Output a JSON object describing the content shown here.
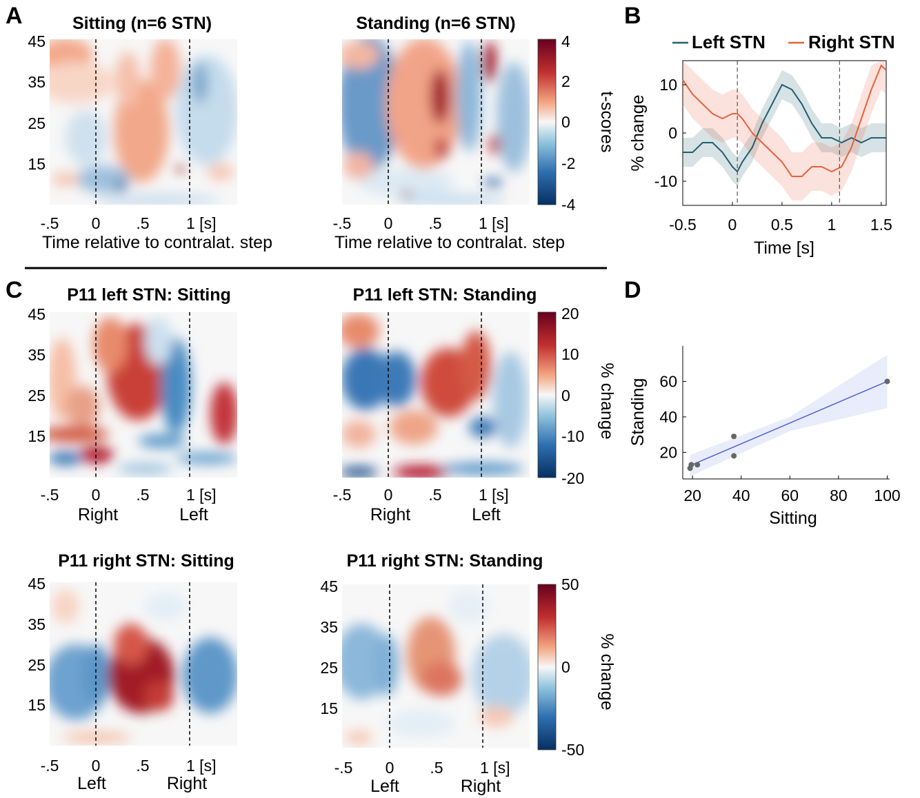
{
  "panels": {
    "a": "A",
    "b": "B",
    "c": "C",
    "d": "D"
  },
  "colormap": {
    "neg": "#1c4f8f",
    "mid": "#f7f7f7",
    "pos": "#a60a23"
  },
  "heatmaps": [
    {
      "id": "A1",
      "title": "Sitting (n=6 STN)",
      "xticks": [
        "-.5",
        "0",
        ".5",
        "1 [s]"
      ],
      "yticks": [
        "45",
        "35",
        "25",
        "15"
      ],
      "xlabel": "Time relative to contralat. step",
      "sublabels": [],
      "vmax": 4
    },
    {
      "id": "A2",
      "title": "Standing (n=6 STN)",
      "xticks": [
        "-.5",
        "0",
        ".5",
        "1 [s]"
      ],
      "yticks": [],
      "xlabel": "Time relative to contralat. step",
      "sublabels": [],
      "vmax": 4
    },
    {
      "id": "C1",
      "title": "P11 left STN: Sitting",
      "xticks": [
        "-.5",
        "0",
        ".5",
        "1 [s]"
      ],
      "yticks": [
        "45",
        "35",
        "25",
        "15"
      ],
      "xlabel": "",
      "sublabels": [
        "Right",
        "Left"
      ],
      "vmax": 20
    },
    {
      "id": "C2",
      "title": "P11 left STN: Standing",
      "xticks": [
        "-.5",
        "0",
        ".5",
        "1 [s]"
      ],
      "yticks": [],
      "xlabel": "",
      "sublabels": [
        "Right",
        "Left"
      ],
      "vmax": 20
    },
    {
      "id": "C3",
      "title": "P11 right STN: Sitting",
      "xticks": [
        "-.5",
        "0",
        ".5",
        "1 [s]"
      ],
      "yticks": [
        "45",
        "35",
        "25",
        "15"
      ],
      "xlabel": "",
      "sublabels": [
        "Left",
        "Right"
      ],
      "vmax": 50
    },
    {
      "id": "C4",
      "title": "P11 right STN: Standing",
      "xticks": [
        "-.5",
        "0",
        ".5",
        "1 [s]"
      ],
      "yticks": [
        "45",
        "35",
        "25",
        "15"
      ],
      "xlabel": "",
      "sublabels": [
        "Left",
        "Right"
      ],
      "vmax": 50
    }
  ],
  "colorbars": [
    {
      "id": "cb1",
      "ticks": [
        "4",
        "2",
        "0",
        "-2",
        "-4"
      ],
      "label": "t-scores"
    },
    {
      "id": "cb2",
      "ticks": [
        "20",
        "10",
        "0",
        "-10",
        "-20"
      ],
      "label": "% change"
    },
    {
      "id": "cb3",
      "ticks": [
        "50",
        "0",
        "-50"
      ],
      "label": "% change"
    }
  ],
  "chart_data": [
    {
      "type": "line",
      "panel": "B",
      "xlabel": "Time [s]",
      "ylabel": "% change",
      "xlim": [
        -0.5,
        1.55
      ],
      "ylim": [
        -15,
        15
      ],
      "xticks": [
        "-0.5",
        "0",
        "0.5",
        "1",
        "1.5"
      ],
      "yticks": [
        "10",
        "0",
        "-10"
      ],
      "legend_position": "top",
      "vlines": [
        0.05,
        1.08
      ],
      "series": [
        {
          "name": "Left STN",
          "color": "#1f5f6f",
          "x": [
            -0.5,
            -0.4,
            -0.3,
            -0.2,
            -0.1,
            0.0,
            0.05,
            0.1,
            0.2,
            0.3,
            0.4,
            0.5,
            0.6,
            0.7,
            0.8,
            0.9,
            1.0,
            1.1,
            1.2,
            1.3,
            1.4,
            1.5,
            1.55
          ],
          "y": [
            -4,
            -4,
            -2,
            -2,
            -4,
            -7,
            -8,
            -6,
            -3,
            2,
            6,
            10,
            9,
            6,
            2,
            -1,
            -1,
            -2,
            -1,
            -2,
            -1,
            -1,
            -1
          ]
        },
        {
          "name": "Right STN",
          "color": "#e8603c",
          "x": [
            -0.5,
            -0.4,
            -0.3,
            -0.2,
            -0.1,
            0.0,
            0.05,
            0.1,
            0.2,
            0.3,
            0.4,
            0.5,
            0.6,
            0.7,
            0.8,
            0.9,
            1.0,
            1.1,
            1.2,
            1.3,
            1.4,
            1.5,
            1.55
          ],
          "y": [
            11,
            8,
            6,
            4,
            3,
            4,
            4,
            3,
            0,
            -2,
            -4,
            -6,
            -9,
            -9,
            -7,
            -7,
            -8,
            -7,
            -3,
            3,
            9,
            14,
            13
          ]
        }
      ]
    },
    {
      "type": "scatter",
      "panel": "D",
      "xlabel": "Sitting",
      "ylabel": "Standing",
      "xlim": [
        16,
        101
      ],
      "ylim": [
        5,
        80
      ],
      "xticks": [
        20,
        40,
        60,
        80,
        100
      ],
      "yticks": [
        20,
        40,
        60
      ],
      "points": [
        {
          "x": 19,
          "y": 11
        },
        {
          "x": 19.5,
          "y": 13
        },
        {
          "x": 22,
          "y": 13
        },
        {
          "x": 37,
          "y": 29
        },
        {
          "x": 37,
          "y": 18
        },
        {
          "x": 100,
          "y": 60
        }
      ],
      "fit": {
        "x": [
          19,
          100
        ],
        "y": [
          12.5,
          60
        ],
        "color": "#4a62d8"
      }
    }
  ]
}
